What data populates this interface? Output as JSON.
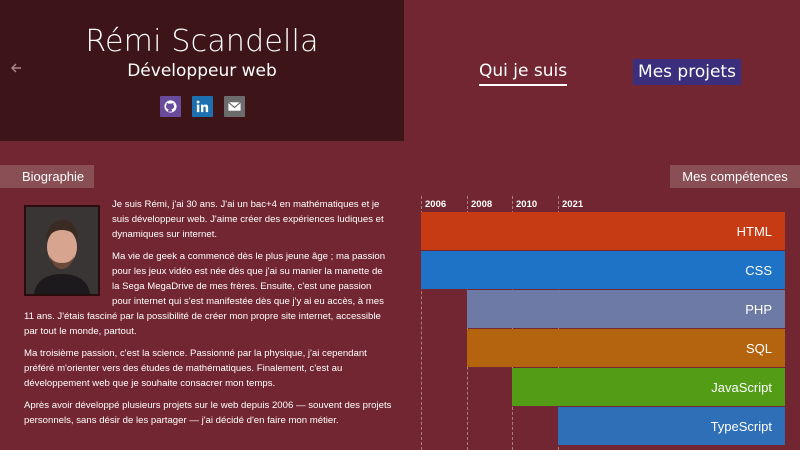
{
  "header": {
    "name": "Rémi Scandella",
    "subtitle": "Développeur web",
    "back_icon": "arrow-left-icon",
    "socials": [
      {
        "icon": "github-icon",
        "color": "#6a4a9c"
      },
      {
        "icon": "linkedin-icon",
        "color": "#1e6fb0"
      },
      {
        "icon": "mail-icon",
        "color": "#6c6c6c"
      }
    ]
  },
  "nav": {
    "about": "Qui je suis",
    "projects": "Mes projets"
  },
  "bio_section": {
    "label": "Biographie",
    "paragraphs": [
      "Je suis Rémi, j'ai 30 ans. J'ai un bac+4 en mathématiques et je suis développeur web. J'aime créer des expériences ludiques et dynamiques sur internet.",
      "Ma vie de geek a commencé dès le plus jeune âge ; ma passion pour les jeux vidéo est née dès que j'ai su manier la manette de la Sega MegaDrive de mes frères. Ensuite, c'est une passion pour internet qui s'est manifestée dès que j'y ai eu accès, à mes 11 ans. J'étais fasciné par la possibilité de créer mon propre site internet, accessible par tout le monde, partout.",
      "Ma troisième passion, c'est la science. Passionné par la physique, j'ai cependant préféré m'orienter vers des études de mathématiques. Finalement, c'est au développement web que je souhaite consacrer mon temps.",
      "Après avoir développé plusieurs projets sur le web depuis 2006 — souvent des projets personnels, sans désir de les partager — j'ai décidé d'en faire mon métier."
    ]
  },
  "skills_section": {
    "label": "Mes compétences",
    "ticks": [
      "2006",
      "2008",
      "2010",
      "2021"
    ],
    "skills": [
      {
        "name": "HTML",
        "since": "2006",
        "color": "#c63a14"
      },
      {
        "name": "CSS",
        "since": "2006",
        "color": "#1f73c6"
      },
      {
        "name": "PHP",
        "since": "2008",
        "color": "#6d7aa5"
      },
      {
        "name": "SQL",
        "since": "2008",
        "color": "#b4640e"
      },
      {
        "name": "JavaScript",
        "since": "2010",
        "color": "#529c16"
      },
      {
        "name": "TypeScript",
        "since": "2021",
        "color": "#2e6fb8"
      }
    ]
  }
}
